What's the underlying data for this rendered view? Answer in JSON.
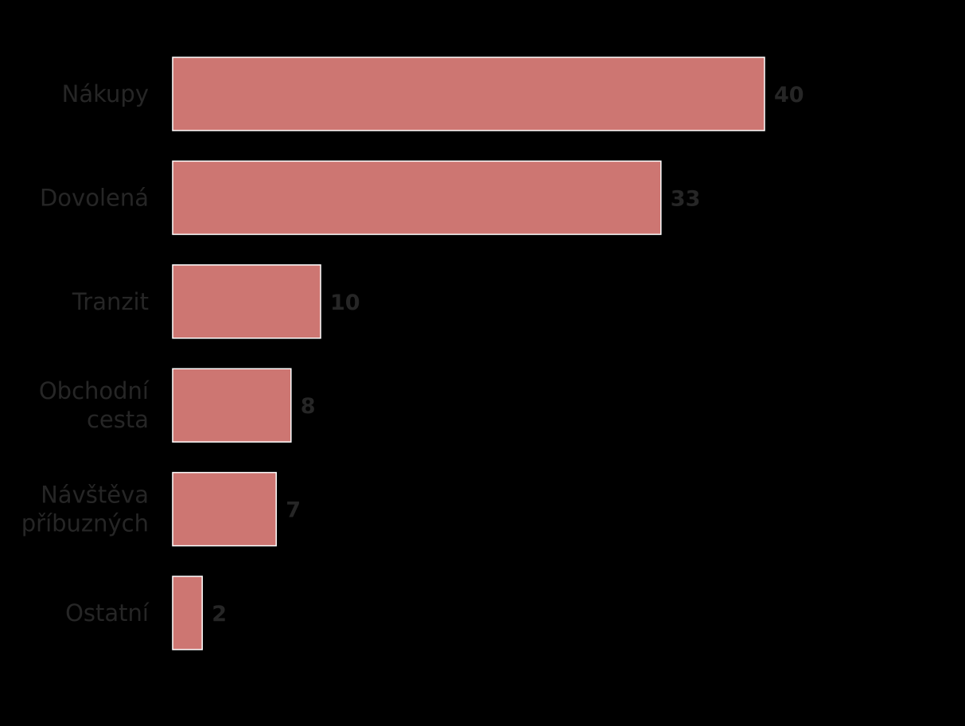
{
  "chart_data": {
    "type": "bar",
    "orientation": "horizontal",
    "title": "",
    "xlabel": "",
    "ylabel": "",
    "categories": [
      [
        "Nákupy"
      ],
      [
        "Dovolená"
      ],
      [
        "Tranzit"
      ],
      [
        "Obchodní",
        "cesta"
      ],
      [
        "Návštěva",
        "příbuzných"
      ],
      [
        "Ostatní"
      ]
    ],
    "values": [
      40,
      33,
      10,
      8,
      7,
      2
    ],
    "xlim": [
      0,
      40
    ],
    "grid": false,
    "legend": "none",
    "bar_color": "#cd7672",
    "background_color": "#000000",
    "text_color": "#262626"
  }
}
